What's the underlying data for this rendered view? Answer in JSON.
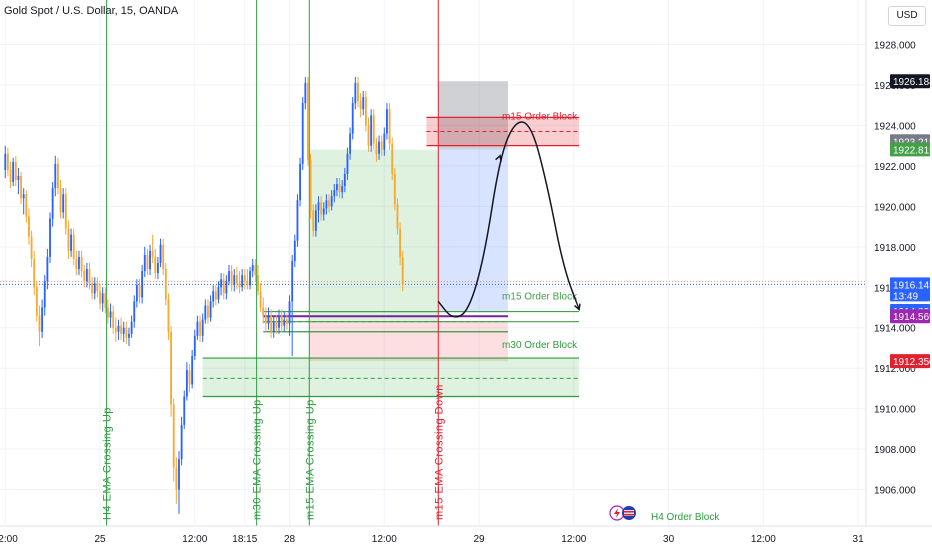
{
  "header": {
    "symbol_title": "Gold Spot / U.S. Dollar, 15, OANDA",
    "currency_button": "USD"
  },
  "colors": {
    "up": "#2962ff",
    "down": "#f7a830",
    "green": "#2e9b3f",
    "red": "#e0212f",
    "purple": "#7b1fa2"
  },
  "chart_data": {
    "type": "candlestick",
    "ylim": [
      1904.2,
      1930.2
    ],
    "y_ticks": [
      1906,
      1908,
      1910,
      1912,
      1914,
      1916,
      1918,
      1920,
      1922,
      1924,
      1926,
      1928
    ],
    "y_tick_labels": [
      "1906.000",
      "1908.000",
      "1910.000",
      "1912.000",
      "1914.000",
      "1916.000",
      "1918.000",
      "1920.000",
      "1922.000",
      "1924.000",
      "1926.000",
      "1928.000"
    ],
    "x_ticks": [
      {
        "t": 0,
        "label": "12:00"
      },
      {
        "t": 36,
        "label": "25"
      },
      {
        "t": 72,
        "label": "12:00"
      },
      {
        "t": 91,
        "label": "18:15"
      },
      {
        "t": 108,
        "label": "28"
      },
      {
        "t": 144,
        "label": "12:00"
      },
      {
        "t": 180,
        "label": "29"
      },
      {
        "t": 216,
        "label": "12:00"
      },
      {
        "t": 252,
        "label": "30"
      },
      {
        "t": 288,
        "label": "12:00"
      },
      {
        "t": 324,
        "label": "31"
      }
    ],
    "x_range": [
      -2,
      327
    ],
    "price_labels": [
      {
        "value": 1926.184,
        "label": "1926.184",
        "color": "#131722"
      },
      {
        "value": 1923.215,
        "label": "1923.215",
        "color": "#787b86"
      },
      {
        "value": 1922.815,
        "label": "1922.815",
        "color": "#43a047"
      },
      {
        "value": 1916.145,
        "label": "1916.145",
        "color": "#2962ff",
        "sub": "13:49"
      },
      {
        "value": 1914.83,
        "label": "1914.830",
        "color": "#2962ff"
      },
      {
        "value": 1914.569,
        "label": "1914.569",
        "color": "#9c27b0"
      },
      {
        "value": 1912.35,
        "label": "1912.350",
        "color": "#e0212f"
      }
    ],
    "candles": [
      [
        1921.8,
        1923.0,
        1921.4,
        1922.6
      ],
      [
        1922.6,
        1922.9,
        1921.5,
        1921.8
      ],
      [
        1921.8,
        1922.2,
        1920.9,
        1921.2
      ],
      [
        1921.2,
        1922.4,
        1921.0,
        1922.2
      ],
      [
        1922.2,
        1922.5,
        1921.0,
        1921.3
      ],
      [
        1921.3,
        1921.9,
        1920.6,
        1921.5
      ],
      [
        1921.5,
        1921.7,
        1920.1,
        1920.4
      ],
      [
        1920.4,
        1920.9,
        1919.6,
        1920.6
      ],
      [
        1920.6,
        1920.8,
        1919.2,
        1919.5
      ],
      [
        1919.5,
        1919.9,
        1918.1,
        1918.5
      ],
      [
        1918.5,
        1918.8,
        1917.0,
        1917.4
      ],
      [
        1917.4,
        1917.8,
        1915.6,
        1916.0
      ],
      [
        1916.0,
        1916.3,
        1914.3,
        1914.6
      ],
      [
        1914.6,
        1915.1,
        1913.1,
        1913.8
      ],
      [
        1913.8,
        1915.4,
        1913.5,
        1915.0
      ],
      [
        1915.0,
        1916.6,
        1914.6,
        1916.3
      ],
      [
        1916.3,
        1917.9,
        1915.9,
        1917.5
      ],
      [
        1917.5,
        1919.7,
        1917.2,
        1919.4
      ],
      [
        1919.4,
        1921.2,
        1919.0,
        1920.9
      ],
      [
        1920.9,
        1922.5,
        1920.5,
        1922.1
      ],
      [
        1922.1,
        1922.4,
        1920.6,
        1920.9
      ],
      [
        1920.9,
        1921.3,
        1919.4,
        1919.7
      ],
      [
        1919.7,
        1920.9,
        1919.4,
        1920.6
      ],
      [
        1920.6,
        1920.9,
        1918.6,
        1918.9
      ],
      [
        1918.9,
        1919.3,
        1917.4,
        1917.8
      ],
      [
        1917.8,
        1918.9,
        1917.5,
        1918.6
      ],
      [
        1918.6,
        1918.9,
        1917.1,
        1917.4
      ],
      [
        1917.4,
        1917.8,
        1916.6,
        1916.9
      ],
      [
        1916.9,
        1917.8,
        1916.6,
        1917.5
      ],
      [
        1917.5,
        1917.8,
        1916.5,
        1916.8
      ],
      [
        1916.8,
        1917.1,
        1916.0,
        1916.3
      ],
      [
        1916.3,
        1917.2,
        1916.0,
        1916.9
      ],
      [
        1916.9,
        1917.2,
        1915.9,
        1916.2
      ],
      [
        1916.2,
        1916.5,
        1915.4,
        1915.7
      ],
      [
        1915.7,
        1916.5,
        1915.4,
        1916.2
      ],
      [
        1916.2,
        1916.5,
        1915.5,
        1915.8
      ],
      [
        1915.8,
        1916.2,
        1914.9,
        1915.2
      ],
      [
        1915.2,
        1916.0,
        1914.8,
        1915.7
      ],
      [
        1915.7,
        1916.0,
        1914.7,
        1915.0
      ],
      [
        1915.0,
        1915.4,
        1914.2,
        1914.5
      ],
      [
        1914.5,
        1915.2,
        1914.0,
        1914.8
      ],
      [
        1914.8,
        1915.1,
        1913.7,
        1914.0
      ],
      [
        1914.0,
        1914.5,
        1913.3,
        1913.8
      ],
      [
        1913.8,
        1914.4,
        1913.4,
        1914.1
      ],
      [
        1914.1,
        1914.5,
        1913.4,
        1913.7
      ],
      [
        1913.7,
        1914.3,
        1913.3,
        1914.0
      ],
      [
        1914.0,
        1914.3,
        1913.2,
        1913.5
      ],
      [
        1913.5,
        1914.0,
        1913.1,
        1913.7
      ],
      [
        1913.7,
        1914.6,
        1913.5,
        1914.3
      ],
      [
        1914.3,
        1915.6,
        1914.0,
        1915.3
      ],
      [
        1915.3,
        1916.4,
        1915.0,
        1916.1
      ],
      [
        1916.1,
        1916.4,
        1915.2,
        1915.5
      ],
      [
        1915.5,
        1917.1,
        1915.2,
        1916.8
      ],
      [
        1916.8,
        1918.0,
        1916.5,
        1917.6
      ],
      [
        1917.6,
        1917.9,
        1916.6,
        1916.9
      ],
      [
        1916.9,
        1918.1,
        1916.6,
        1917.8
      ],
      [
        1917.8,
        1918.6,
        1917.2,
        1917.5
      ],
      [
        1917.5,
        1917.9,
        1916.4,
        1916.7
      ],
      [
        1916.7,
        1917.5,
        1916.4,
        1917.2
      ],
      [
        1917.2,
        1918.4,
        1917.0,
        1918.1
      ],
      [
        1918.1,
        1918.4,
        1916.6,
        1916.9
      ],
      [
        1916.9,
        1917.2,
        1915.1,
        1915.4
      ],
      [
        1915.4,
        1915.7,
        1913.4,
        1913.8
      ],
      [
        1913.8,
        1914.1,
        1909.6,
        1910.2
      ],
      [
        1910.2,
        1910.5,
        1906.4,
        1907.1
      ],
      [
        1907.1,
        1907.6,
        1905.3,
        1906.0
      ],
      [
        1906.0,
        1907.9,
        1904.8,
        1907.5
      ],
      [
        1907.5,
        1909.6,
        1907.2,
        1909.2
      ],
      [
        1909.2,
        1910.9,
        1909.0,
        1910.6
      ],
      [
        1910.6,
        1912.3,
        1910.4,
        1911.9
      ],
      [
        1911.9,
        1912.2,
        1910.8,
        1911.2
      ],
      [
        1911.2,
        1912.9,
        1911.0,
        1912.6
      ],
      [
        1912.6,
        1913.9,
        1912.4,
        1913.6
      ],
      [
        1913.6,
        1914.6,
        1913.4,
        1914.3
      ],
      [
        1914.3,
        1914.6,
        1913.3,
        1913.6
      ],
      [
        1913.6,
        1914.7,
        1913.3,
        1914.4
      ],
      [
        1914.4,
        1915.4,
        1914.2,
        1915.1
      ],
      [
        1915.1,
        1915.4,
        1914.2,
        1914.5
      ],
      [
        1914.5,
        1915.6,
        1914.3,
        1915.3
      ],
      [
        1915.3,
        1916.1,
        1915.0,
        1915.8
      ],
      [
        1915.8,
        1916.1,
        1915.1,
        1915.4
      ],
      [
        1915.4,
        1916.3,
        1915.2,
        1916.0
      ],
      [
        1916.0,
        1916.7,
        1915.6,
        1916.4
      ],
      [
        1916.4,
        1916.7,
        1915.4,
        1915.7
      ],
      [
        1915.7,
        1916.6,
        1915.4,
        1916.3
      ],
      [
        1916.3,
        1917.1,
        1916.1,
        1916.8
      ],
      [
        1916.8,
        1917.1,
        1915.8,
        1916.1
      ],
      [
        1916.1,
        1916.9,
        1915.8,
        1916.6
      ],
      [
        1916.6,
        1917.0,
        1915.9,
        1916.2
      ],
      [
        1916.2,
        1916.8,
        1915.7,
        1916.0
      ],
      [
        1916.0,
        1916.9,
        1915.8,
        1916.6
      ],
      [
        1916.6,
        1916.9,
        1915.9,
        1916.3
      ],
      [
        1916.3,
        1916.9,
        1915.9,
        1916.1
      ],
      [
        1916.1,
        1917.0,
        1915.9,
        1916.8
      ],
      [
        1916.8,
        1917.4,
        1916.5,
        1917.1
      ],
      [
        1917.1,
        1917.4,
        1916.3,
        1916.6
      ],
      [
        1916.6,
        1917.1,
        1915.6,
        1915.8
      ],
      [
        1915.8,
        1916.2,
        1914.8,
        1915.0
      ],
      [
        1915.0,
        1915.5,
        1914.2,
        1914.6
      ],
      [
        1914.6,
        1915.0,
        1913.8,
        1914.2
      ],
      [
        1914.2,
        1915.0,
        1913.9,
        1914.6
      ],
      [
        1914.6,
        1914.9,
        1913.5,
        1913.8
      ],
      [
        1913.8,
        1914.6,
        1913.5,
        1914.3
      ],
      [
        1914.3,
        1914.6,
        1913.7,
        1914.0
      ],
      [
        1914.0,
        1914.9,
        1913.7,
        1914.6
      ],
      [
        1914.6,
        1914.9,
        1913.8,
        1914.1
      ],
      [
        1914.1,
        1914.8,
        1913.8,
        1914.4
      ],
      [
        1914.4,
        1914.7,
        1913.9,
        1914.2
      ],
      [
        1914.2,
        1915.6,
        1913.6,
        1915.3
      ],
      [
        1915.3,
        1917.6,
        1912.6,
        1917.3
      ],
      [
        1917.3,
        1918.6,
        1917.0,
        1918.3
      ],
      [
        1918.3,
        1920.6,
        1918.0,
        1920.3
      ],
      [
        1920.3,
        1922.4,
        1920.0,
        1922.1
      ],
      [
        1922.1,
        1925.4,
        1921.8,
        1925.1
      ],
      [
        1925.1,
        1926.4,
        1924.8,
        1926.1
      ],
      [
        1926.1,
        1926.4,
        1922.0,
        1922.3
      ],
      [
        1922.3,
        1922.6,
        1919.4,
        1919.8
      ],
      [
        1919.8,
        1920.1,
        1918.5,
        1918.8
      ],
      [
        1918.8,
        1920.1,
        1918.5,
        1919.8
      ],
      [
        1919.8,
        1920.5,
        1919.2,
        1920.2
      ],
      [
        1920.2,
        1920.5,
        1919.3,
        1919.6
      ],
      [
        1919.6,
        1920.2,
        1919.3,
        1919.9
      ],
      [
        1919.9,
        1920.6,
        1919.6,
        1920.3
      ],
      [
        1920.3,
        1920.6,
        1919.7,
        1920.0
      ],
      [
        1920.0,
        1920.8,
        1919.8,
        1920.5
      ],
      [
        1920.5,
        1921.1,
        1920.2,
        1920.8
      ],
      [
        1920.8,
        1921.4,
        1920.5,
        1921.1
      ],
      [
        1921.1,
        1921.4,
        1920.4,
        1920.7
      ],
      [
        1920.7,
        1921.3,
        1920.4,
        1921.0
      ],
      [
        1921.0,
        1921.9,
        1920.7,
        1921.6
      ],
      [
        1921.6,
        1922.9,
        1921.3,
        1922.6
      ],
      [
        1922.6,
        1923.9,
        1922.3,
        1923.6
      ],
      [
        1923.6,
        1925.4,
        1923.3,
        1925.1
      ],
      [
        1925.1,
        1926.4,
        1924.8,
        1926.1
      ],
      [
        1926.1,
        1926.4,
        1924.9,
        1925.2
      ],
      [
        1925.2,
        1925.6,
        1924.4,
        1924.8
      ],
      [
        1924.8,
        1925.7,
        1924.5,
        1925.4
      ],
      [
        1925.4,
        1925.7,
        1923.7,
        1924.0
      ],
      [
        1924.0,
        1924.4,
        1922.7,
        1923.0
      ],
      [
        1923.0,
        1924.8,
        1922.7,
        1924.5
      ],
      [
        1924.5,
        1924.8,
        1922.8,
        1923.1
      ],
      [
        1923.1,
        1923.4,
        1922.2,
        1922.6
      ],
      [
        1922.6,
        1923.5,
        1922.3,
        1923.2
      ],
      [
        1923.2,
        1923.5,
        1922.5,
        1922.8
      ],
      [
        1922.8,
        1923.9,
        1922.5,
        1923.6
      ],
      [
        1923.6,
        1925.1,
        1923.3,
        1924.8
      ],
      [
        1924.8,
        1925.1,
        1922.8,
        1923.1
      ],
      [
        1923.1,
        1923.4,
        1921.3,
        1921.6
      ],
      [
        1921.6,
        1921.9,
        1919.8,
        1920.1
      ],
      [
        1920.1,
        1920.4,
        1918.6,
        1918.9
      ],
      [
        1918.9,
        1919.2,
        1917.1,
        1917.5
      ],
      [
        1917.5,
        1917.8,
        1915.8,
        1916.145
      ]
    ],
    "vertical_markers": [
      {
        "t": 38.5,
        "label": "H4 EMA Crossing Up",
        "color": "#2e9b3f"
      },
      {
        "t": 95.5,
        "label": "m30 EMA Crossing Up",
        "color": "#2e9b3f"
      },
      {
        "t": 115.5,
        "label": "m15 EMA Crossing Up",
        "color": "#2e9b3f"
      },
      {
        "t": 164.5,
        "label": "m15 EMA Crossing Down",
        "color": "#e0212f"
      }
    ],
    "zones": [
      {
        "name": "m15 Order Block",
        "t0": 160,
        "t1": 218,
        "top": 1924.4,
        "bottom": 1923.0,
        "fill": "rgba(224,33,47,0.22)",
        "border": "#e0212f",
        "mid": 1923.7,
        "label_value": 1924.3,
        "label_color": "#e0212f"
      },
      {
        "name": "",
        "t0": 98,
        "t1": 191,
        "top": 1914.8,
        "bottom": 1913.8,
        "fill": "rgba(255,255,255,0)",
        "border": "#2e9b3f",
        "mid": 1914.3
      },
      {
        "name": "m15 Order Block",
        "t0": 98,
        "t1": 218,
        "top": 1914.8,
        "bottom": 1914.3,
        "fill": "rgba(0,0,0,0)",
        "border": "#43a047",
        "label_value": 1915.4,
        "label_color": "#43a047"
      },
      {
        "name": "m30 Order Block",
        "t0": 75,
        "t1": 218,
        "top": 1912.5,
        "bottom": 1910.6,
        "fill": "rgba(76,175,80,0.18)",
        "border": "#2e9b3f",
        "mid": 1911.5,
        "label_value": 1913.0,
        "label_color": "#2e9b3f"
      }
    ],
    "position": {
      "green_area": {
        "t0": 115.5,
        "t1": 164.5,
        "top": 1922.8,
        "bottom": 1914.3
      },
      "short_entry": 1922.815,
      "stop": 1926.184,
      "target": 1914.83,
      "t0": 164.5,
      "t1": 191
    },
    "red_position_area": {
      "t0": 115.5,
      "t1": 191,
      "top": 1914.3,
      "bottom": 1912.35
    },
    "purple_line": {
      "t0": 98,
      "t1": 191,
      "value": 1914.569
    },
    "current_line": 1916.145,
    "projection_path": [
      [
        164.5,
        1915.3
      ],
      [
        170,
        1914.4
      ],
      [
        176,
        1914.8
      ],
      [
        182,
        1917.5
      ],
      [
        188,
        1922.5
      ],
      [
        194,
        1924.3
      ],
      [
        200,
        1924.0
      ],
      [
        206,
        1921.0
      ],
      [
        212,
        1917.0
      ],
      [
        218,
        1914.9
      ]
    ],
    "bottom_label": "H4 Order Block"
  }
}
